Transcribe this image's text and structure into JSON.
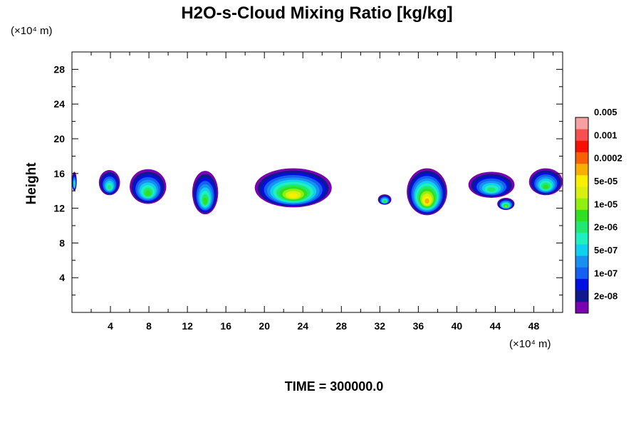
{
  "chart_data": {
    "type": "heatmap",
    "title": "H2O-s-Cloud Mixing Ratio [kg/kg]",
    "ylabel": "Height",
    "y_unit": "(×10⁴ m)",
    "x_unit": "(×10⁴ m)",
    "footer": "TIME = 300000.0",
    "xlim": [
      0,
      51
    ],
    "ylim": [
      0,
      30
    ],
    "x_ticks": [
      "4",
      "8",
      "12",
      "16",
      "20",
      "24",
      "28",
      "32",
      "36",
      "40",
      "44",
      "48"
    ],
    "y_ticks": [
      "4",
      "8",
      "12",
      "16",
      "20",
      "24",
      "28"
    ],
    "colorbar": {
      "colors": [
        "#7a00b0",
        "#101890",
        "#0010e0",
        "#1460f0",
        "#1890f0",
        "#10d0f0",
        "#20f0c0",
        "#20e870",
        "#30e020",
        "#90f010",
        "#d8f010",
        "#f8f000",
        "#f8b000",
        "#f86000",
        "#f81000",
        "#f85050",
        "#f8a0a0"
      ],
      "labels": [
        "2e-08",
        "1e-07",
        "5e-07",
        "2e-06",
        "1e-05",
        "5e-05",
        "0.0002",
        "0.001",
        "0.005"
      ]
    },
    "clouds": [
      {
        "x0": 0.0,
        "x1": 0.5,
        "top": 16.2,
        "bottom": 14.0,
        "peak": 7
      },
      {
        "x0": 2.8,
        "x1": 5.0,
        "top": 16.4,
        "bottom": 13.5,
        "peak": 7
      },
      {
        "x0": 6.0,
        "x1": 9.8,
        "top": 16.5,
        "bottom": 12.5,
        "peak": 8
      },
      {
        "x0": 12.5,
        "x1": 15.2,
        "top": 16.3,
        "bottom": 11.3,
        "peak": 8
      },
      {
        "x0": 19.0,
        "x1": 27.0,
        "top": 16.6,
        "bottom": 12.1,
        "peak": 11
      },
      {
        "x0": 31.8,
        "x1": 33.2,
        "top": 13.6,
        "bottom": 12.4,
        "peak": 8
      },
      {
        "x0": 34.8,
        "x1": 39.0,
        "top": 16.6,
        "bottom": 11.2,
        "peak": 12
      },
      {
        "x0": 41.2,
        "x1": 46.0,
        "top": 16.2,
        "bottom": 13.2,
        "peak": 7
      },
      {
        "x0": 44.2,
        "x1": 46.0,
        "top": 13.2,
        "bottom": 11.8,
        "peak": 9
      },
      {
        "x0": 47.5,
        "x1": 51.0,
        "top": 16.6,
        "bottom": 13.5,
        "peak": 8
      }
    ]
  }
}
